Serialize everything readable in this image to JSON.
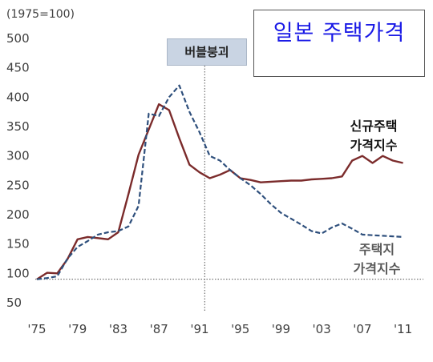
{
  "chart_data": {
    "type": "line",
    "title": "일본 주택가격",
    "unit_label": "(1975=100)",
    "event_label": "버블붕괴",
    "event_x": 1991.5,
    "baseline_y": 90,
    "ylim": [
      50,
      500
    ],
    "xlim": [
      1975,
      2013
    ],
    "y_ticks": [
      500,
      450,
      400,
      350,
      300,
      250,
      200,
      150,
      100,
      50
    ],
    "x_ticks": [
      {
        "value": 1975,
        "label": "'75"
      },
      {
        "value": 1979,
        "label": "'79"
      },
      {
        "value": 1983,
        "label": "'83"
      },
      {
        "value": 1987,
        "label": "'87"
      },
      {
        "value": 1991,
        "label": "'91"
      },
      {
        "value": 1995,
        "label": "'95"
      },
      {
        "value": 1999,
        "label": "'99"
      },
      {
        "value": 2003,
        "label": "'03"
      },
      {
        "value": 2007,
        "label": "'07"
      },
      {
        "value": 2011,
        "label": "'11"
      }
    ],
    "series": [
      {
        "name": "신규주택 가격지수",
        "name_lines": [
          "신규주택",
          "가격지수"
        ],
        "color": "#7b2b2b",
        "style": "solid",
        "points": [
          [
            1975,
            90
          ],
          [
            1976,
            101
          ],
          [
            1977,
            100
          ],
          [
            1978,
            124
          ],
          [
            1979,
            158
          ],
          [
            1980,
            162
          ],
          [
            1981,
            160
          ],
          [
            1982,
            158
          ],
          [
            1983,
            170
          ],
          [
            1984,
            235
          ],
          [
            1985,
            302
          ],
          [
            1986,
            345
          ],
          [
            1987,
            388
          ],
          [
            1988,
            378
          ],
          [
            1989,
            330
          ],
          [
            1990,
            285
          ],
          [
            1991,
            272
          ],
          [
            1992,
            262
          ],
          [
            1993,
            268
          ],
          [
            1994,
            276
          ],
          [
            1995,
            262
          ],
          [
            1996,
            259
          ],
          [
            1997,
            255
          ],
          [
            1998,
            256
          ],
          [
            1999,
            257
          ],
          [
            2000,
            258
          ],
          [
            2001,
            258
          ],
          [
            2002,
            260
          ],
          [
            2003,
            261
          ],
          [
            2004,
            262
          ],
          [
            2005,
            265
          ],
          [
            2006,
            292
          ],
          [
            2007,
            300
          ],
          [
            2008,
            288
          ],
          [
            2009,
            300
          ],
          [
            2010,
            292
          ],
          [
            2011,
            288
          ]
        ]
      },
      {
        "name": "주택지 가격지수",
        "name_lines": [
          "주택지",
          "가격지수"
        ],
        "color": "#2e4f7c",
        "style": "dashed",
        "points": [
          [
            1975,
            90
          ],
          [
            1976,
            92
          ],
          [
            1977,
            95
          ],
          [
            1978,
            125
          ],
          [
            1979,
            145
          ],
          [
            1980,
            155
          ],
          [
            1981,
            166
          ],
          [
            1982,
            170
          ],
          [
            1983,
            172
          ],
          [
            1984,
            180
          ],
          [
            1985,
            215
          ],
          [
            1986,
            372
          ],
          [
            1987,
            368
          ],
          [
            1988,
            400
          ],
          [
            1989,
            420
          ],
          [
            1990,
            375
          ],
          [
            1991,
            340
          ],
          [
            1992,
            300
          ],
          [
            1993,
            292
          ],
          [
            1994,
            276
          ],
          [
            1995,
            262
          ],
          [
            1996,
            250
          ],
          [
            1997,
            235
          ],
          [
            1998,
            218
          ],
          [
            1999,
            203
          ],
          [
            2000,
            193
          ],
          [
            2001,
            183
          ],
          [
            2002,
            172
          ],
          [
            2003,
            168
          ],
          [
            2004,
            178
          ],
          [
            2005,
            185
          ],
          [
            2006,
            176
          ],
          [
            2007,
            166
          ],
          [
            2008,
            165
          ],
          [
            2009,
            164
          ],
          [
            2010,
            163
          ],
          [
            2011,
            162
          ]
        ]
      }
    ]
  }
}
